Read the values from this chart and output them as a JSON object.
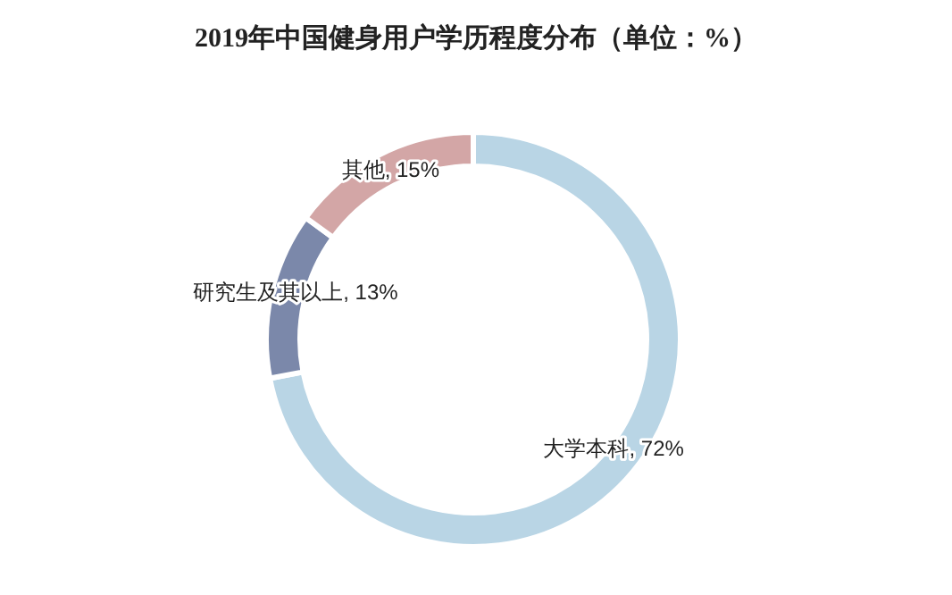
{
  "chart_data": {
    "type": "donut",
    "title": "2019年中国健身用户学历程度分布（单位：%）",
    "categories": [
      "大学本科",
      "研究生及其以上",
      "其他"
    ],
    "values": [
      72,
      13,
      15
    ],
    "value_labels": [
      "72%",
      "13%",
      "15%"
    ],
    "colors": [
      "#b9d5e5",
      "#7b88aa",
      "#d3a6a6"
    ]
  }
}
